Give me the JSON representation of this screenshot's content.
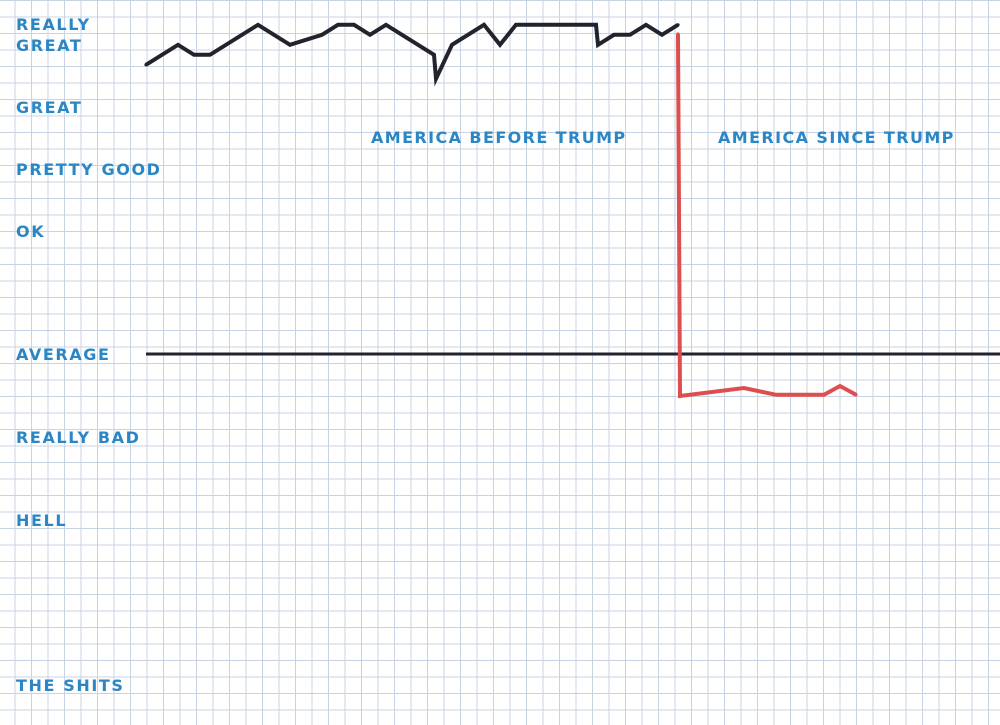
{
  "chart_data": {
    "type": "line",
    "title": "",
    "xlabel": "",
    "ylabel": "",
    "y_levels": [
      "REALLY GREAT",
      "GREAT",
      "PRETTY GOOD",
      "OK",
      "AVERAGE",
      "REALLY BAD",
      "HELL",
      "THE SHITS"
    ],
    "regions": [
      "AMERICA BEFORE TRUMP",
      "AMERICA SINCE TRUMP"
    ],
    "baseline_level": "AVERAGE",
    "grid": true,
    "colors": {
      "label": "#2b86c5",
      "before": "#22232c",
      "since": "#dd4e4e",
      "baseline": "#22232c",
      "grid": "#c9d3e6"
    },
    "series": [
      {
        "name": "AMERICA BEFORE TRUMP",
        "x": [
          0,
          32,
          48,
          64,
          112,
          144,
          176,
          192,
          208,
          224,
          240,
          256,
          288,
          290,
          306,
          338,
          354,
          370,
          386,
          402,
          434,
          450,
          452,
          468,
          484,
          500,
          516,
          532
        ],
        "y": [
          7.23,
          7.73,
          7.48,
          7.48,
          8.23,
          7.73,
          7.98,
          8.23,
          8.23,
          7.98,
          8.23,
          7.98,
          7.48,
          6.88,
          7.73,
          8.23,
          7.73,
          8.23,
          8.23,
          8.23,
          8.23,
          8.23,
          7.73,
          7.98,
          7.98,
          8.23,
          7.98,
          8.23
        ]
      },
      {
        "name": "AMERICA SINCE TRUMP",
        "x": [
          532,
          534,
          598,
          630,
          678,
          694,
          710
        ],
        "y": [
          8.0,
          -1.05,
          -0.85,
          -1.02,
          -1.02,
          -0.8,
          -1.02
        ]
      }
    ]
  }
}
